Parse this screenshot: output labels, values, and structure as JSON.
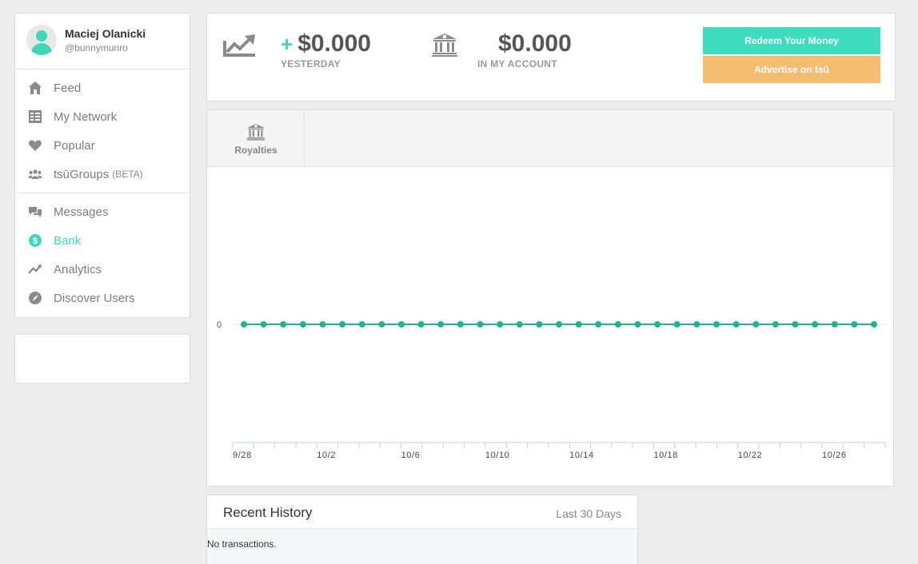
{
  "profile": {
    "name": "Maciej Olanicki",
    "handle": "@bunnymunro"
  },
  "nav": {
    "group1": [
      {
        "label": "Feed",
        "icon": "home-icon"
      },
      {
        "label": "My Network",
        "icon": "network-icon"
      },
      {
        "label": "Popular",
        "icon": "heart-icon"
      },
      {
        "label": "tsūGroups",
        "badge": "(BETA)",
        "icon": "groups-icon"
      }
    ],
    "group2": [
      {
        "label": "Messages",
        "icon": "messages-icon"
      },
      {
        "label": "Bank",
        "icon": "dollar-icon",
        "active": true
      },
      {
        "label": "Analytics",
        "icon": "analytics-icon"
      },
      {
        "label": "Discover Users",
        "icon": "compass-icon"
      }
    ]
  },
  "summary": {
    "yesterday_sign": "+",
    "yesterday_value": "$0.000",
    "yesterday_label": "YESTERDAY",
    "account_value": "$0.000",
    "account_label": "IN MY ACCOUNT",
    "redeem_label": "Redeem Your Money",
    "advertise_label": "Advertise on tsū"
  },
  "tabs": [
    {
      "label": "Royalties",
      "icon": "bank-icon"
    }
  ],
  "colors": {
    "accent": "#3fd8b7",
    "advertise": "#f3bd72",
    "line": "#1db394"
  },
  "chart_data": {
    "type": "line",
    "x": [
      "9/28",
      "9/29",
      "9/30",
      "10/1",
      "10/2",
      "10/3",
      "10/4",
      "10/5",
      "10/6",
      "10/7",
      "10/8",
      "10/9",
      "10/10",
      "10/11",
      "10/12",
      "10/13",
      "10/14",
      "10/15",
      "10/16",
      "10/17",
      "10/18",
      "10/19",
      "10/20",
      "10/21",
      "10/22",
      "10/23",
      "10/24",
      "10/25",
      "10/26",
      "10/27",
      "10/28",
      "10/29",
      "10/30"
    ],
    "series": [
      {
        "values": [
          0,
          0,
          0,
          0,
          0,
          0,
          0,
          0,
          0,
          0,
          0,
          0,
          0,
          0,
          0,
          0,
          0,
          0,
          0,
          0,
          0,
          0,
          0,
          0,
          0,
          0,
          0,
          0,
          0,
          0,
          0,
          0,
          0
        ]
      }
    ],
    "x_tick_labels": [
      "9/28",
      "10/2",
      "10/6",
      "10/10",
      "10/14",
      "10/18",
      "10/22",
      "10/26"
    ],
    "y_tick_labels": [
      "0"
    ],
    "grid": false
  },
  "history": {
    "title": "Recent History",
    "range": "Last 30 Days",
    "empty": "No transactions."
  }
}
